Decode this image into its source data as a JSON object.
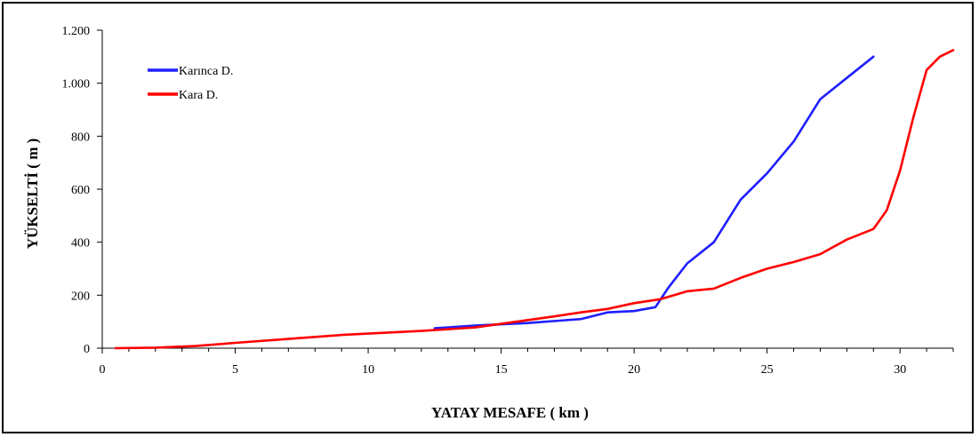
{
  "chart_data": {
    "type": "line",
    "title": "",
    "xlabel": "YATAY MESAFE ( km )",
    "ylabel": "YÜKSELTİ ( m )",
    "xlim": [
      0,
      32
    ],
    "ylim": [
      0,
      1200
    ],
    "x_ticks": [
      0,
      5,
      10,
      15,
      20,
      25,
      30
    ],
    "x_tick_labels": [
      "0",
      "5",
      "10",
      "15",
      "20",
      "25",
      "30"
    ],
    "y_ticks": [
      0,
      200,
      400,
      600,
      800,
      1000,
      1200
    ],
    "y_tick_labels": [
      "0",
      "200",
      "400",
      "600",
      "800",
      "1.000",
      "1.200"
    ],
    "grid": false,
    "legend_position": "top-left",
    "series": [
      {
        "name": "Karınca D.",
        "color": "#1f1fff",
        "x": [
          12.5,
          14,
          16,
          18,
          19,
          20,
          20.8,
          21.3,
          22,
          23,
          24,
          25,
          26,
          27,
          28,
          29
        ],
        "y": [
          75,
          85,
          95,
          110,
          135,
          140,
          155,
          230,
          320,
          400,
          560,
          660,
          780,
          940,
          1020,
          1100
        ]
      },
      {
        "name": "Kara D.",
        "color": "#ff0000",
        "x": [
          0.5,
          2,
          3.5,
          5,
          7,
          9,
          10,
          12,
          14,
          15,
          17,
          18,
          19,
          20,
          21,
          22,
          23,
          24,
          25,
          26,
          27,
          28,
          29,
          29.5,
          30,
          30.5,
          31,
          31.5,
          32
        ],
        "y": [
          0,
          2,
          8,
          20,
          35,
          50,
          55,
          65,
          78,
          92,
          120,
          135,
          148,
          170,
          185,
          215,
          225,
          265,
          300,
          325,
          355,
          410,
          450,
          520,
          670,
          870,
          1050,
          1100,
          1125
        ]
      }
    ]
  }
}
